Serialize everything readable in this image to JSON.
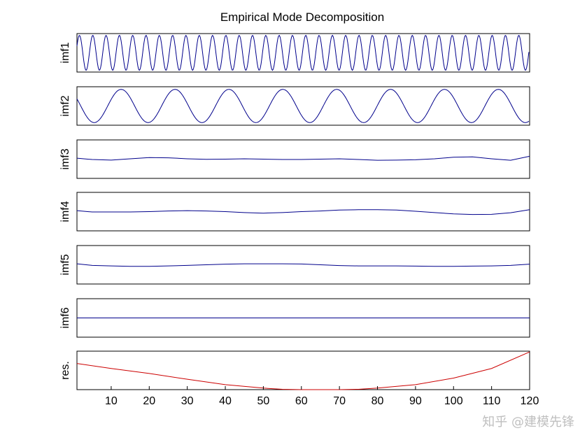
{
  "chart_data": {
    "type": "line",
    "title": "Empirical Mode Decomposition",
    "x_ticks": [
      10,
      20,
      30,
      40,
      50,
      60,
      70,
      80,
      90,
      100,
      110,
      120
    ],
    "x_range": [
      1,
      120
    ],
    "line_colors": {
      "imf": "#00008b",
      "residual": "#cc0000"
    },
    "panels": [
      {
        "label": "imf1",
        "ylim": [
          -1.1,
          1.1
        ],
        "x": [
          1,
          120
        ],
        "component": {
          "kind": "oscillation",
          "cycles": 34,
          "amplitude": 1.0,
          "phase": 0.4
        }
      },
      {
        "label": "imf2",
        "ylim": [
          -1.1,
          1.1
        ],
        "x": [
          1,
          120
        ],
        "component": {
          "kind": "oscillation",
          "cycles": 8.4,
          "amplitude": 0.95,
          "phase": 2.7
        }
      },
      {
        "label": "imf3",
        "ylim": [
          -1,
          1
        ],
        "x": [
          1,
          5,
          10,
          15,
          20,
          25,
          30,
          35,
          40,
          45,
          50,
          55,
          60,
          65,
          70,
          75,
          80,
          85,
          90,
          95,
          100,
          105,
          110,
          115,
          120
        ],
        "y": [
          0.05,
          -0.02,
          -0.05,
          0.02,
          0.08,
          0.07,
          0.02,
          -0.01,
          0.0,
          0.02,
          0.0,
          -0.02,
          -0.02,
          0.0,
          0.02,
          -0.02,
          -0.06,
          -0.05,
          -0.03,
          0.02,
          0.1,
          0.12,
          0.02,
          -0.06,
          0.15
        ]
      },
      {
        "label": "imf4",
        "ylim": [
          -1,
          1
        ],
        "x": [
          1,
          5,
          10,
          15,
          20,
          25,
          30,
          35,
          40,
          45,
          50,
          55,
          60,
          65,
          70,
          75,
          80,
          85,
          90,
          95,
          100,
          105,
          110,
          115,
          120
        ],
        "y": [
          0.05,
          -0.02,
          -0.02,
          -0.02,
          0.0,
          0.03,
          0.05,
          0.03,
          0.0,
          -0.05,
          -0.08,
          -0.05,
          0.0,
          0.03,
          0.08,
          0.1,
          0.1,
          0.08,
          0.02,
          -0.05,
          -0.12,
          -0.15,
          -0.14,
          -0.06,
          0.1
        ]
      },
      {
        "label": "imf5",
        "ylim": [
          -1,
          1
        ],
        "x": [
          1,
          5,
          10,
          15,
          20,
          25,
          30,
          35,
          40,
          45,
          50,
          55,
          60,
          65,
          70,
          75,
          80,
          85,
          90,
          95,
          100,
          105,
          110,
          115,
          120
        ],
        "y": [
          0.05,
          -0.03,
          -0.06,
          -0.08,
          -0.08,
          -0.06,
          -0.03,
          0.0,
          0.03,
          0.05,
          0.05,
          0.05,
          0.04,
          0.0,
          -0.04,
          -0.06,
          -0.06,
          -0.06,
          -0.07,
          -0.08,
          -0.08,
          -0.07,
          -0.06,
          -0.03,
          0.03
        ]
      },
      {
        "label": "imf6",
        "ylim": [
          -1,
          1
        ],
        "x": [
          1,
          120
        ],
        "y": [
          0.0,
          0.0
        ]
      },
      {
        "label": "res.",
        "ylim": [
          0,
          1
        ],
        "color": "residual",
        "x": [
          1,
          10,
          20,
          30,
          40,
          50,
          55,
          60,
          65,
          70,
          75,
          80,
          90,
          100,
          110,
          120
        ],
        "y": [
          0.68,
          0.55,
          0.42,
          0.27,
          0.13,
          0.04,
          0.01,
          0.0,
          0.0,
          0.0,
          0.01,
          0.04,
          0.13,
          0.3,
          0.55,
          0.98
        ]
      }
    ]
  }
}
